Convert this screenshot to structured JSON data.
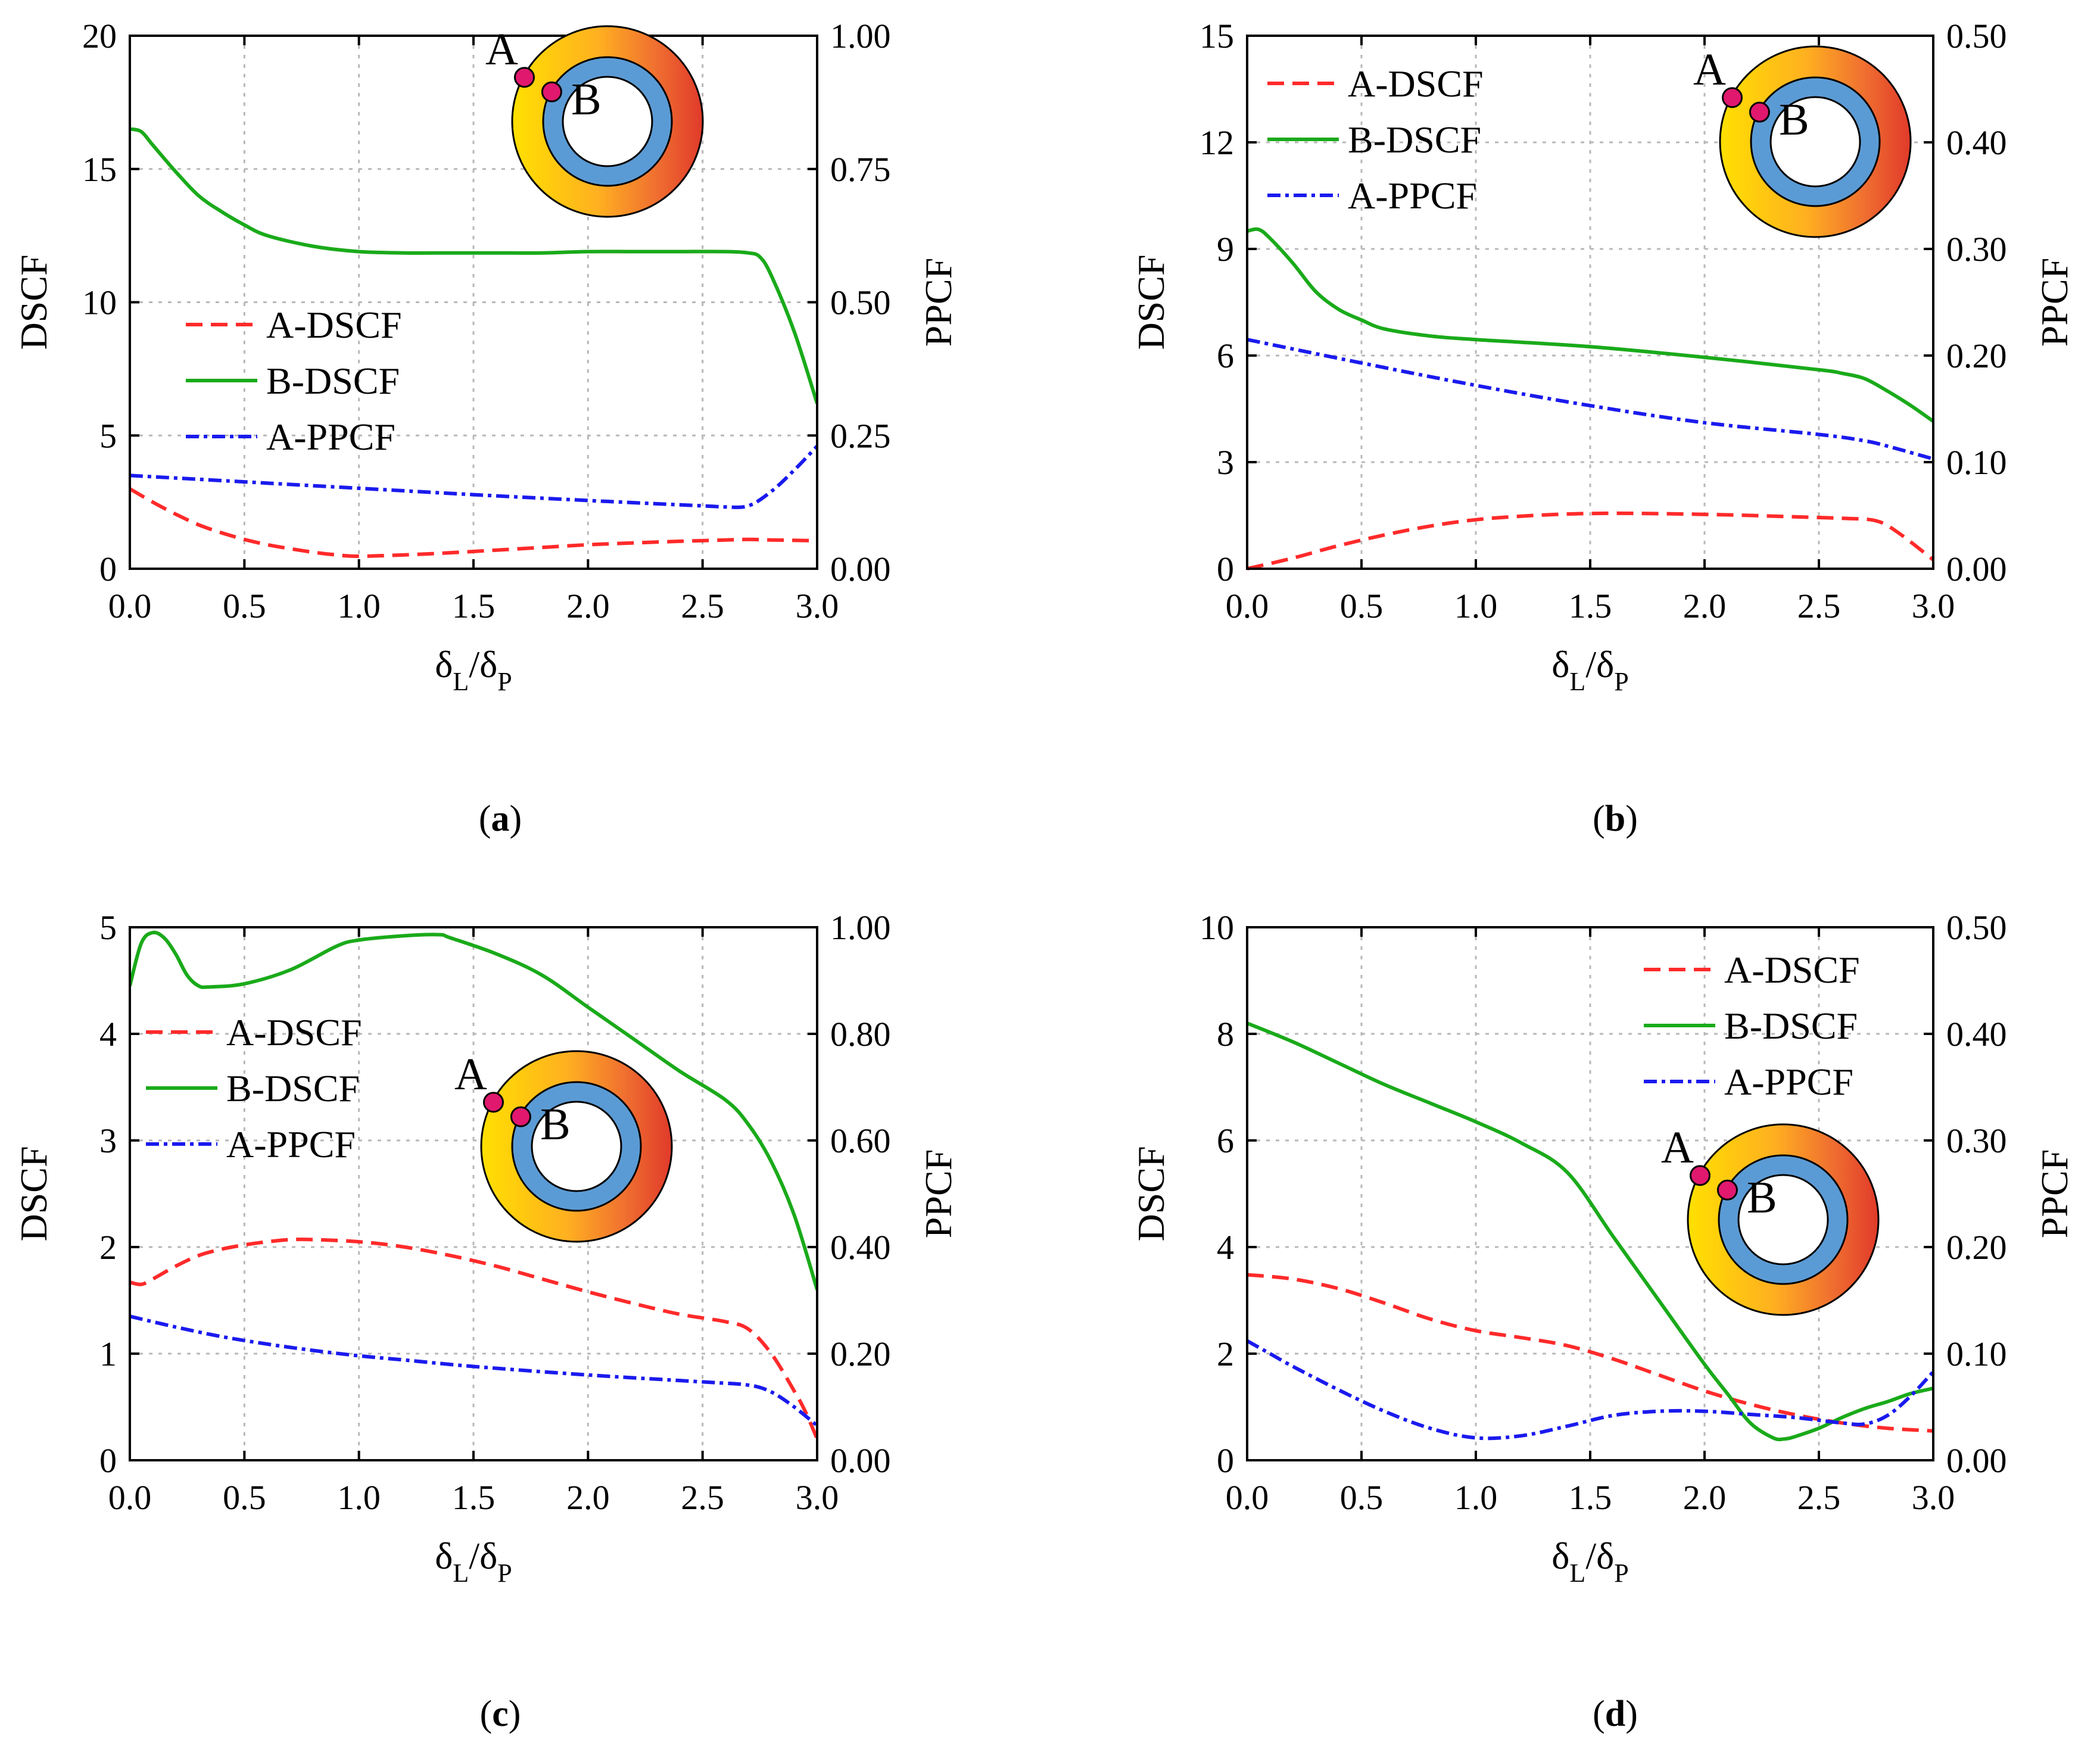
{
  "colors": {
    "a_dscf": "#ff2a2a",
    "b_dscf": "#1aaa1a",
    "a_ppcf": "#1a1aee",
    "grid": "#b8b8b8",
    "ring_inner": "#5b9bd5",
    "point": "#e0186e",
    "gradient": [
      "#ffe000",
      "#ffb020",
      "#f07030",
      "#e03a2a"
    ]
  },
  "inset": {
    "label_a": "A",
    "label_b": "B"
  },
  "chart_data": [
    {
      "id": "a",
      "panel_label": "a",
      "type": "line",
      "xlabel": "δL/δP",
      "xlabel_main": "δ",
      "xlabel_sub1": "L",
      "xlabel_slash": "/",
      "xlabel_sub2": "P",
      "ylabel": "DSCF",
      "y2label": "PPCF",
      "xlim": [
        0,
        3
      ],
      "ylim": [
        0,
        20
      ],
      "y2lim": [
        0,
        1
      ],
      "xticks": [
        "0.0",
        "0.5",
        "1.0",
        "1.5",
        "2.0",
        "2.5",
        "3.0"
      ],
      "yticks": [
        "0",
        "5",
        "10",
        "15",
        "20"
      ],
      "y2ticks": [
        "0.00",
        "0.25",
        "0.50",
        "0.75",
        "1.00"
      ],
      "legend_position": "middle-left",
      "legend": [
        "A-DSCF",
        "B-DSCF",
        "A-PPCF"
      ],
      "series": [
        {
          "name": "A-DSCF",
          "axis": "left",
          "style": "dashed",
          "color_key": "a_dscf",
          "x": [
            0,
            0.1,
            0.2,
            0.3,
            0.4,
            0.5,
            0.6,
            0.7,
            0.8,
            0.9,
            1.0,
            1.2,
            1.4,
            1.6,
            1.8,
            2.0,
            2.2,
            2.4,
            2.6,
            2.7,
            2.8,
            3.0
          ],
          "y": [
            3.0,
            2.5,
            2.05,
            1.65,
            1.35,
            1.1,
            0.9,
            0.75,
            0.62,
            0.52,
            0.47,
            0.52,
            0.6,
            0.7,
            0.8,
            0.9,
            0.97,
            1.03,
            1.08,
            1.1,
            1.08,
            1.05
          ]
        },
        {
          "name": "B-DSCF",
          "axis": "left",
          "style": "solid",
          "color_key": "b_dscf",
          "x": [
            0,
            0.05,
            0.1,
            0.2,
            0.3,
            0.4,
            0.5,
            0.6,
            0.8,
            1.0,
            1.2,
            1.4,
            1.6,
            1.8,
            2.0,
            2.2,
            2.4,
            2.6,
            2.7,
            2.75,
            2.8,
            2.9,
            3.0
          ],
          "y": [
            16.5,
            16.4,
            15.9,
            14.9,
            14.0,
            13.4,
            12.9,
            12.5,
            12.1,
            11.9,
            11.85,
            11.85,
            11.85,
            11.85,
            11.9,
            11.9,
            11.9,
            11.9,
            11.85,
            11.7,
            11.0,
            8.9,
            6.2
          ]
        },
        {
          "name": "A-PPCF",
          "axis": "right",
          "style": "dashdot",
          "color_key": "a_ppcf",
          "x": [
            0,
            0.5,
            1.0,
            1.5,
            2.0,
            2.5,
            2.6,
            2.7,
            2.8,
            2.9,
            3.0
          ],
          "y": [
            0.175,
            0.163,
            0.151,
            0.139,
            0.128,
            0.118,
            0.116,
            0.118,
            0.145,
            0.185,
            0.23
          ]
        }
      ]
    },
    {
      "id": "b",
      "panel_label": "b",
      "type": "line",
      "xlabel": "δL/δP",
      "xlabel_main": "δ",
      "xlabel_sub1": "L",
      "xlabel_slash": "/",
      "xlabel_sub2": "P",
      "ylabel": "DSCF",
      "y2label": "PPCF",
      "xlim": [
        0,
        3
      ],
      "ylim": [
        0,
        15
      ],
      "y2lim": [
        0,
        0.5
      ],
      "xticks": [
        "0.0",
        "0.5",
        "1.0",
        "1.5",
        "2.0",
        "2.5",
        "3.0"
      ],
      "yticks": [
        "0",
        "3",
        "6",
        "9",
        "12",
        "15"
      ],
      "y2ticks": [
        "0.00",
        "0.10",
        "0.20",
        "0.30",
        "0.40",
        "0.50"
      ],
      "legend_position": "top-left",
      "legend": [
        "A-DSCF",
        "B-DSCF",
        "A-PPCF"
      ],
      "series": [
        {
          "name": "A-DSCF",
          "axis": "left",
          "style": "dashed",
          "color_key": "a_dscf",
          "x": [
            0,
            0.2,
            0.4,
            0.6,
            0.8,
            1.0,
            1.2,
            1.4,
            1.6,
            1.8,
            2.0,
            2.2,
            2.4,
            2.6,
            2.75,
            2.85,
            3.0
          ],
          "y": [
            0,
            0.3,
            0.65,
            0.95,
            1.2,
            1.38,
            1.48,
            1.54,
            1.56,
            1.55,
            1.53,
            1.5,
            1.46,
            1.42,
            1.35,
            1.0,
            0.25
          ]
        },
        {
          "name": "B-DSCF",
          "axis": "left",
          "style": "solid",
          "color_key": "b_dscf",
          "x": [
            0,
            0.05,
            0.1,
            0.2,
            0.3,
            0.4,
            0.5,
            0.6,
            0.8,
            1.0,
            1.5,
            2.0,
            2.5,
            2.6,
            2.7,
            2.8,
            2.9,
            3.0
          ],
          "y": [
            9.5,
            9.55,
            9.3,
            8.6,
            7.8,
            7.3,
            7.0,
            6.75,
            6.55,
            6.45,
            6.25,
            5.95,
            5.6,
            5.5,
            5.35,
            5.0,
            4.6,
            4.15
          ]
        },
        {
          "name": "A-PPCF",
          "axis": "right",
          "style": "dashdot",
          "color_key": "a_ppcf",
          "x": [
            0,
            0.5,
            1.0,
            1.5,
            2.0,
            2.5,
            2.7,
            2.8,
            3.0
          ],
          "y": [
            0.215,
            0.193,
            0.172,
            0.153,
            0.137,
            0.126,
            0.12,
            0.115,
            0.103
          ]
        }
      ]
    },
    {
      "id": "c",
      "panel_label": "c",
      "type": "line",
      "xlabel": "δL/δP",
      "xlabel_main": "δ",
      "xlabel_sub1": "L",
      "xlabel_slash": "/",
      "xlabel_sub2": "P",
      "ylabel": "DSCF",
      "y2label": "PPCF",
      "xlim": [
        0,
        3
      ],
      "ylim": [
        0,
        5
      ],
      "y2lim": [
        0,
        1
      ],
      "xticks": [
        "0.0",
        "0.5",
        "1.0",
        "1.5",
        "2.0",
        "2.5",
        "3.0"
      ],
      "yticks": [
        "0",
        "1",
        "2",
        "3",
        "4",
        "5"
      ],
      "y2ticks": [
        "0.00",
        "0.20",
        "0.40",
        "0.60",
        "0.80",
        "1.00"
      ],
      "legend_position": "upper-left",
      "legend": [
        "A-DSCF",
        "B-DSCF",
        "A-PPCF"
      ],
      "series": [
        {
          "name": "A-DSCF",
          "axis": "left",
          "style": "dashed",
          "color_key": "a_dscf",
          "x": [
            0,
            0.05,
            0.1,
            0.2,
            0.3,
            0.4,
            0.5,
            0.6,
            0.7,
            0.8,
            1.0,
            1.2,
            1.4,
            1.6,
            1.8,
            2.0,
            2.2,
            2.4,
            2.6,
            2.7,
            2.8,
            2.9,
            2.95,
            3.0
          ],
          "y": [
            1.67,
            1.65,
            1.7,
            1.82,
            1.92,
            1.98,
            2.02,
            2.05,
            2.07,
            2.07,
            2.05,
            2.0,
            1.92,
            1.82,
            1.7,
            1.58,
            1.47,
            1.37,
            1.3,
            1.23,
            1.0,
            0.65,
            0.45,
            0.2
          ]
        },
        {
          "name": "B-DSCF",
          "axis": "left",
          "style": "solid",
          "color_key": "b_dscf",
          "x": [
            0,
            0.05,
            0.1,
            0.15,
            0.2,
            0.25,
            0.3,
            0.35,
            0.5,
            0.7,
            0.9,
            1.0,
            1.2,
            1.35,
            1.4,
            1.6,
            1.8,
            2.0,
            2.2,
            2.4,
            2.6,
            2.7,
            2.8,
            2.9,
            3.0
          ],
          "y": [
            4.45,
            4.85,
            4.95,
            4.9,
            4.75,
            4.55,
            4.45,
            4.44,
            4.47,
            4.6,
            4.82,
            4.88,
            4.92,
            4.93,
            4.9,
            4.75,
            4.55,
            4.25,
            3.95,
            3.65,
            3.38,
            3.15,
            2.8,
            2.3,
            1.6
          ]
        },
        {
          "name": "A-PPCF",
          "axis": "right",
          "style": "dashdot",
          "color_key": "a_ppcf",
          "x": [
            0,
            0.2,
            0.4,
            0.6,
            0.8,
            1.0,
            1.2,
            1.5,
            2.0,
            2.5,
            2.7,
            2.8,
            2.9,
            3.0
          ],
          "y": [
            0.27,
            0.25,
            0.232,
            0.218,
            0.206,
            0.196,
            0.188,
            0.176,
            0.16,
            0.147,
            0.141,
            0.128,
            0.1,
            0.065
          ]
        }
      ]
    },
    {
      "id": "d",
      "panel_label": "d",
      "type": "line",
      "xlabel": "δL/δP",
      "xlabel_main": "δ",
      "xlabel_sub1": "L",
      "xlabel_slash": "/",
      "xlabel_sub2": "P",
      "ylabel": "DSCF",
      "y2label": "PPCF",
      "xlim": [
        0,
        3
      ],
      "ylim": [
        0,
        10
      ],
      "y2lim": [
        0,
        0.5
      ],
      "xticks": [
        "0.0",
        "0.5",
        "1.0",
        "1.5",
        "2.0",
        "2.5",
        "3.0"
      ],
      "yticks": [
        "0",
        "2",
        "4",
        "6",
        "8",
        "10"
      ],
      "y2ticks": [
        "0.00",
        "0.10",
        "0.20",
        "0.30",
        "0.40",
        "0.50"
      ],
      "legend_position": "top-right",
      "legend": [
        "A-DSCF",
        "B-DSCF",
        "A-PPCF"
      ],
      "series": [
        {
          "name": "A-DSCF",
          "axis": "left",
          "style": "dashed",
          "color_key": "a_dscf",
          "x": [
            0,
            0.2,
            0.4,
            0.6,
            0.8,
            1.0,
            1.2,
            1.4,
            1.6,
            1.8,
            2.0,
            2.2,
            2.4,
            2.6,
            2.8,
            3.0
          ],
          "y": [
            3.48,
            3.4,
            3.22,
            2.95,
            2.65,
            2.43,
            2.3,
            2.15,
            1.9,
            1.6,
            1.3,
            1.05,
            0.85,
            0.7,
            0.6,
            0.55
          ]
        },
        {
          "name": "B-DSCF",
          "axis": "left",
          "style": "solid",
          "color_key": "b_dscf",
          "x": [
            0,
            0.2,
            0.4,
            0.6,
            0.8,
            1.0,
            1.2,
            1.4,
            1.6,
            1.8,
            2.0,
            2.1,
            2.2,
            2.3,
            2.35,
            2.4,
            2.5,
            2.6,
            2.7,
            2.8,
            2.9,
            3.0
          ],
          "y": [
            8.2,
            7.85,
            7.45,
            7.05,
            6.7,
            6.35,
            5.95,
            5.4,
            4.2,
            3.0,
            1.8,
            1.25,
            0.7,
            0.42,
            0.4,
            0.45,
            0.6,
            0.8,
            0.97,
            1.1,
            1.25,
            1.35
          ]
        },
        {
          "name": "A-PPCF",
          "axis": "right",
          "style": "dashdot",
          "color_key": "a_ppcf",
          "x": [
            0,
            0.1,
            0.2,
            0.4,
            0.6,
            0.8,
            1.0,
            1.2,
            1.4,
            1.6,
            1.8,
            2.0,
            2.2,
            2.4,
            2.6,
            2.7,
            2.8,
            2.9,
            3.0
          ],
          "y": [
            0.112,
            0.1,
            0.088,
            0.066,
            0.046,
            0.03,
            0.021,
            0.023,
            0.032,
            0.042,
            0.046,
            0.046,
            0.043,
            0.04,
            0.035,
            0.034,
            0.042,
            0.06,
            0.083
          ]
        }
      ]
    }
  ]
}
